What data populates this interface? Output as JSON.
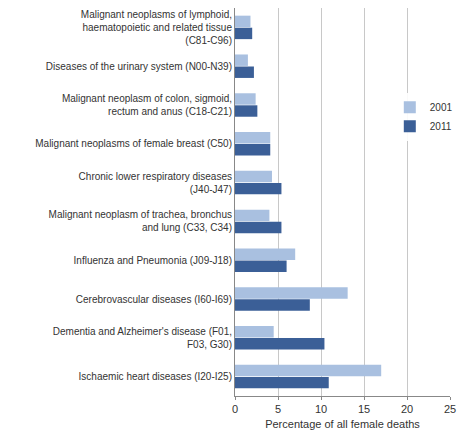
{
  "chart_data": {
    "type": "bar",
    "orientation": "horizontal",
    "xlabel": "Percentage of all female deaths",
    "categories": [
      "Malignant neoplasms of lymphoid, haematopoietic and related tissue (C81-C96)",
      "Diseases of the urinary system (N00-N39)",
      "Malignant neoplasm of colon, sigmoid, rectum and anus (C18-C21)",
      "Malignant neoplasms of female breast (C50)",
      "Chronic lower respiratory diseases (J40-J47)",
      "Malignant neoplasm of trachea, bronchus and lung (C33, C34)",
      "Influenza and Pneumonia (J09-J18)",
      "Cerebrovascular diseases (I60-I69)",
      "Dementia and Alzheimer's disease (F01, F03, G30)",
      "Ischaemic heart diseases (I20-I25)"
    ],
    "series": [
      {
        "name": "2001",
        "color": "#a9c0e0",
        "values": [
          1.8,
          1.5,
          2.4,
          4.1,
          4.3,
          4.0,
          7.0,
          13.1,
          4.5,
          17.0
        ]
      },
      {
        "name": "2011",
        "color": "#3b5f97",
        "values": [
          2.0,
          2.2,
          2.6,
          4.1,
          5.4,
          5.4,
          6.0,
          8.7,
          10.4,
          10.9
        ]
      }
    ],
    "xlim": [
      0,
      25
    ],
    "xticks": [
      0,
      5,
      10,
      15,
      20,
      25
    ],
    "grid": true,
    "legend": "right"
  }
}
